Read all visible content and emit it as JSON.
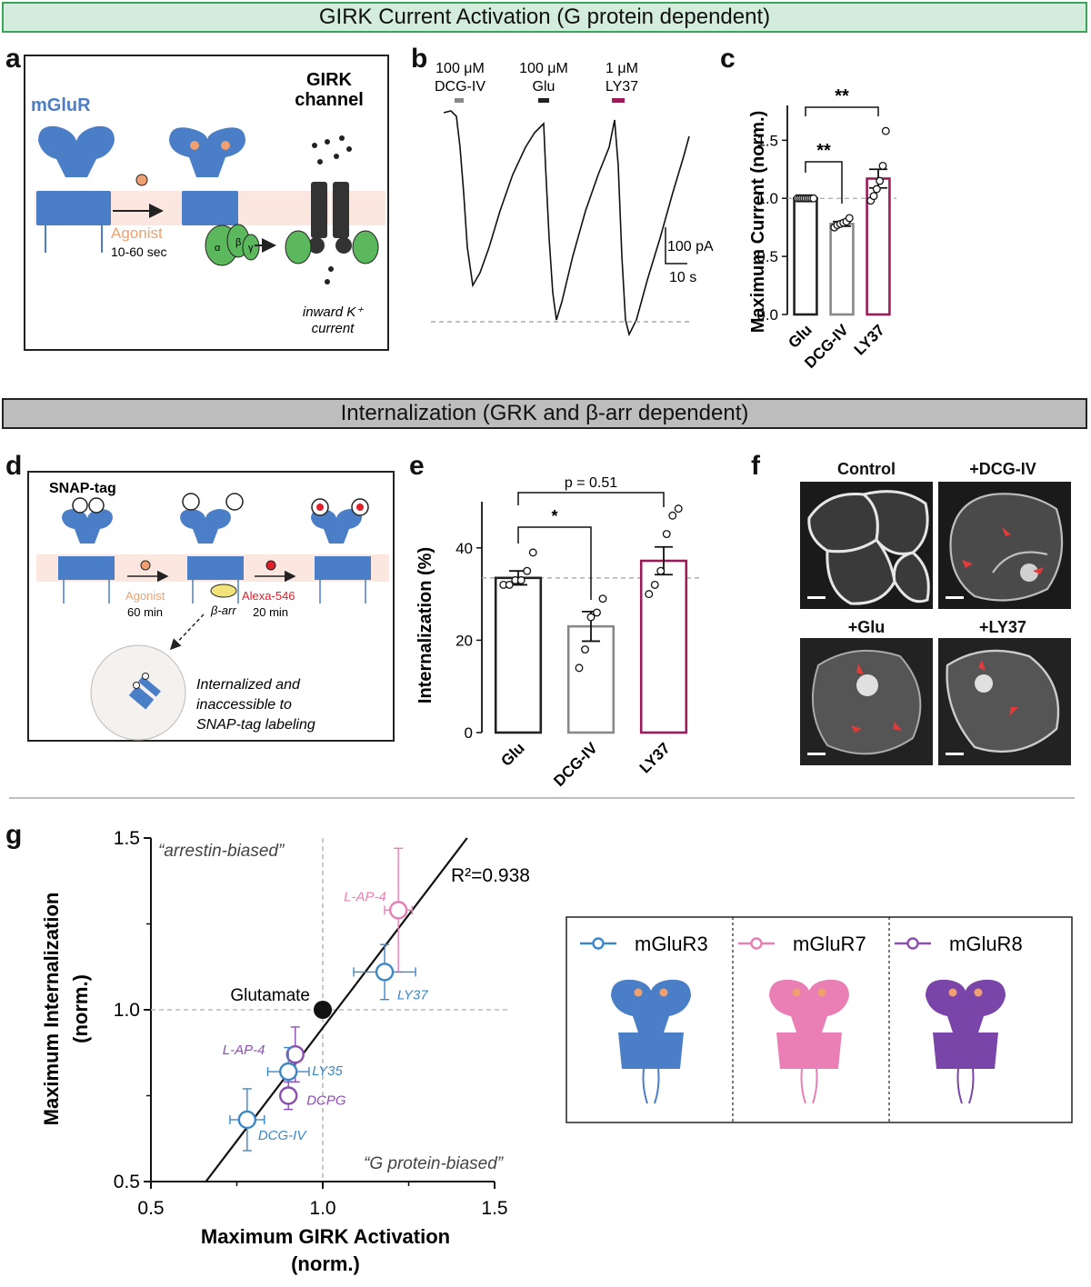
{
  "banners": {
    "top": "GIRK Current Activation (G protein dependent)",
    "middle": "Internalization (GRK and  β-arr dependent)"
  },
  "panel_letters": [
    "a",
    "b",
    "c",
    "d",
    "e",
    "f",
    "g"
  ],
  "panel_a": {
    "receptor_label": "mGluR",
    "channel_label_1": "GIRK",
    "channel_label_2": "channel",
    "agonist_label": "Agonist",
    "time_label": "10-60 sec",
    "current_label_1": "inward K⁺",
    "current_label_2": "current",
    "subunits": [
      "α",
      "β",
      "γ"
    ],
    "colors": {
      "receptor": "#4a7ec7",
      "agonist": "#f0a070",
      "gprotein": "#5cb85c",
      "channel": "#333333",
      "membrane": "#fbe7df"
    }
  },
  "panel_b": {
    "drugs": [
      {
        "conc": "100 μM",
        "name": "DCG-IV",
        "color": "#888888"
      },
      {
        "conc": "100 μM",
        "name": "Glu",
        "color": "#222222"
      },
      {
        "conc": "1 μM",
        "name": "LY37",
        "color": "#9b1b5a"
      }
    ],
    "scale_current": "100 pA",
    "scale_time": "10 s"
  },
  "panel_c": {
    "chart_data": {
      "type": "bar",
      "categories": [
        "Glu",
        "DCG-IV",
        "LY37"
      ],
      "values": [
        1.0,
        0.78,
        1.17
      ],
      "sem": [
        0.0,
        0.02,
        0.08
      ],
      "points": [
        [
          1,
          1,
          1,
          1,
          1,
          1,
          1,
          1,
          1
        ],
        [
          0.75,
          0.77,
          0.78,
          0.79,
          0.8,
          0.83
        ],
        [
          0.98,
          1.02,
          1.08,
          1.15,
          1.28,
          1.58
        ]
      ],
      "ylabel": "Maximum Current (norm.)",
      "ylim": [
        0,
        1.8
      ],
      "yticks": [
        "0.0",
        "0.5",
        "1.0",
        "1.5"
      ],
      "yticks_values": [
        0,
        0.5,
        1.0,
        1.5
      ],
      "reference_line": 1.0,
      "significance": [
        "**",
        "**"
      ],
      "bar_colors": [
        "#222222",
        "#888888",
        "#9b1b5a"
      ]
    }
  },
  "panel_d": {
    "tag_label": "SNAP-tag",
    "agonist_label": "Agonist",
    "agonist_time": "60 min",
    "arrestin_label": "β-arr",
    "dye_label": "Alexa-546",
    "dye_time": "20 min",
    "internalized_1": "Internalized and",
    "internalized_2": "inaccessible to",
    "internalized_3": "SNAP-tag labeling",
    "colors": {
      "dye": "#e0202a",
      "arrestin": "#f2e27a"
    }
  },
  "panel_e": {
    "chart_data": {
      "type": "bar",
      "categories": [
        "Glu",
        "DCG-IV",
        "LY37"
      ],
      "values": [
        33.5,
        23,
        37.2
      ],
      "sem": [
        1.5,
        3.2,
        3.0
      ],
      "points": [
        [
          32,
          32,
          33,
          33,
          35,
          39
        ],
        [
          14,
          18,
          25,
          26,
          29
        ],
        [
          30,
          32,
          35,
          43,
          47,
          48.5
        ]
      ],
      "ylabel": "Internalization (%)",
      "ylim": [
        0,
        50
      ],
      "yticks": [
        "0",
        "20",
        "40"
      ],
      "yticks_values": [
        0,
        20,
        40
      ],
      "reference_line": 33.5,
      "significance": [
        "*",
        "p = 0.51"
      ],
      "bar_colors": [
        "#222222",
        "#888888",
        "#9b1b5a"
      ]
    }
  },
  "panel_f": {
    "images": [
      "Control",
      "+DCG-IV",
      "+Glu",
      "+LY37"
    ]
  },
  "panel_g": {
    "chart_data": {
      "type": "scatter",
      "xlabel_1": "Maximum GIRK Activation",
      "xlabel_2": "(norm.)",
      "ylabel_1": "Maximum Internalization",
      "ylabel_2": "(norm.)",
      "xlim": [
        0.5,
        1.5
      ],
      "ylim": [
        0.5,
        1.5
      ],
      "xticks": [
        "0.5",
        "1.0",
        "1.5"
      ],
      "xticks_values": [
        0.5,
        1.0,
        1.5
      ],
      "yticks": [
        "0.5",
        "1.0",
        "1.5"
      ],
      "yticks_values": [
        0.5,
        1.0,
        1.5
      ],
      "r2": "R²=0.938",
      "quadrant_top": "“arrestin-biased”",
      "quadrant_bottom": "“G protein-biased”",
      "reference": {
        "label": "Glutamate",
        "x": 1.0,
        "y": 1.0
      },
      "points": [
        {
          "label": "L-AP-4",
          "receptor": "mGluR7",
          "x": 1.22,
          "y": 1.29,
          "xerr": 0.04,
          "yerr": 0.18,
          "color": "#e87fb4"
        },
        {
          "label": "LY37",
          "receptor": "mGluR3",
          "x": 1.18,
          "y": 1.11,
          "xerr": 0.09,
          "yerr": 0.08,
          "color": "#3b88c8"
        },
        {
          "label": "L-AP-4",
          "receptor": "mGluR8",
          "x": 0.92,
          "y": 0.87,
          "xerr": 0.02,
          "yerr": 0.08,
          "color": "#8b4fb0"
        },
        {
          "label": "LY35",
          "receptor": "mGluR3",
          "x": 0.9,
          "y": 0.82,
          "xerr": 0.06,
          "yerr": 0.07,
          "color": "#3b88c8"
        },
        {
          "label": "DCPG",
          "receptor": "mGluR8",
          "x": 0.9,
          "y": 0.75,
          "xerr": 0.02,
          "yerr": 0.04,
          "color": "#8b4fb0"
        },
        {
          "label": "DCG-IV",
          "receptor": "mGluR3",
          "x": 0.78,
          "y": 0.68,
          "xerr": 0.05,
          "yerr": 0.09,
          "color": "#3b88c8"
        }
      ],
      "fit_line": {
        "x0": 0.66,
        "y0": 0.5,
        "x1": 1.42,
        "y1": 1.5
      },
      "legend": [
        {
          "name": "mGluR3",
          "color": "#3b88c8",
          "fill": "#4a7ec7"
        },
        {
          "name": "mGluR7",
          "color": "#e87fb4",
          "fill": "#ea7fb6"
        },
        {
          "name": "mGluR8",
          "color": "#8b4fb0",
          "fill": "#7a45a8"
        }
      ]
    }
  }
}
